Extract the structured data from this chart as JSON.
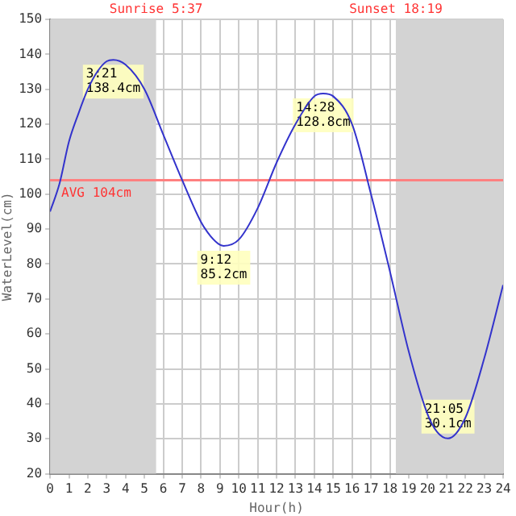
{
  "chart_data": {
    "type": "line",
    "xlabel": "Hour(h)",
    "ylabel": "WaterLevel(cm)",
    "xlim": [
      0,
      24
    ],
    "ylim": [
      20,
      150
    ],
    "xticks": [
      0,
      1,
      2,
      3,
      4,
      5,
      6,
      7,
      8,
      9,
      10,
      11,
      12,
      13,
      14,
      15,
      16,
      17,
      18,
      19,
      20,
      21,
      22,
      23,
      24
    ],
    "yticks": [
      20,
      30,
      40,
      50,
      60,
      70,
      80,
      90,
      100,
      110,
      120,
      130,
      140,
      150
    ],
    "grid": true,
    "marker": "none",
    "line_style": "solid",
    "legend": false,
    "series": [
      {
        "color": "#3333cc",
        "x": [
          0,
          0.5,
          1,
          1.5,
          2,
          2.5,
          3,
          3.35,
          4,
          5,
          6,
          7,
          8,
          8.5,
          9,
          9.2,
          10,
          11,
          12,
          13,
          14,
          14.47,
          15,
          16,
          17,
          18,
          19,
          20,
          20.5,
          21.08,
          22,
          23,
          24
        ],
        "values": [
          95,
          103,
          115,
          123,
          130,
          135,
          138,
          138.4,
          137,
          130,
          117,
          104,
          92,
          88,
          85.5,
          85.2,
          87,
          96,
          109,
          120,
          128,
          128.8,
          128,
          120,
          100,
          78,
          55,
          37,
          32,
          30.1,
          36,
          53,
          74
        ]
      }
    ],
    "bands": [
      {
        "axis": "x",
        "from": 0,
        "to": 5.617,
        "label": "Sunrise 5:37",
        "color": "#d3d3d3"
      },
      {
        "axis": "x",
        "from": 18.317,
        "to": 24,
        "label": "Sunset 18:19",
        "color": "#d3d3d3"
      }
    ],
    "ref_lines": [
      {
        "axis": "y",
        "value": 104,
        "label": "AVG 104cm",
        "color": "#ff8080"
      }
    ],
    "annotations": [
      {
        "text": "3:21\n138.4cm",
        "x": 3.35,
        "y": 138.4
      },
      {
        "text": "9:12\n85.2cm",
        "x": 9.2,
        "y": 85.2
      },
      {
        "text": "14:28\n128.8cm",
        "x": 14.47,
        "y": 128.8
      },
      {
        "text": "21:05\n30.1cm",
        "x": 21.08,
        "y": 30.1
      }
    ]
  }
}
